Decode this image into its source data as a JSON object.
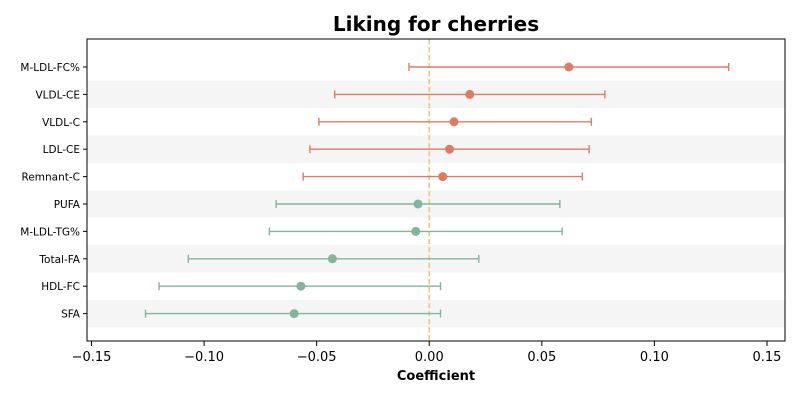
{
  "chart_data": {
    "type": "forest",
    "title": "Liking for cherries",
    "xlabel": "Coefficient",
    "xlim": [
      -0.152,
      0.158
    ],
    "xticks": [
      -0.15,
      -0.1,
      -0.05,
      0.0,
      0.05,
      0.1,
      0.15
    ],
    "xtick_labels": [
      "−0.15",
      "−0.10",
      "−0.05",
      "0.00",
      "0.05",
      "0.10",
      "0.15"
    ],
    "reference_line": 0.0,
    "colors": {
      "positive": "#e07b62",
      "negative": "#82b59b",
      "reference": "#f4c27a",
      "band": "#f5f5f5"
    },
    "rows": [
      {
        "label": "M-LDL-FC%",
        "estimate": 0.062,
        "lower": -0.009,
        "upper": 0.133
      },
      {
        "label": "VLDL-CE",
        "estimate": 0.018,
        "lower": -0.042,
        "upper": 0.078
      },
      {
        "label": "VLDL-C",
        "estimate": 0.011,
        "lower": -0.049,
        "upper": 0.072
      },
      {
        "label": "LDL-CE",
        "estimate": 0.009,
        "lower": -0.053,
        "upper": 0.071
      },
      {
        "label": "Remnant-C",
        "estimate": 0.006,
        "lower": -0.056,
        "upper": 0.068
      },
      {
        "label": "PUFA",
        "estimate": -0.005,
        "lower": -0.068,
        "upper": 0.058
      },
      {
        "label": "M-LDL-TG%",
        "estimate": -0.006,
        "lower": -0.071,
        "upper": 0.059
      },
      {
        "label": "Total-FA",
        "estimate": -0.043,
        "lower": -0.107,
        "upper": 0.022
      },
      {
        "label": "HDL-FC",
        "estimate": -0.057,
        "lower": -0.12,
        "upper": 0.005
      },
      {
        "label": "SFA",
        "estimate": -0.06,
        "lower": -0.126,
        "upper": 0.005
      }
    ]
  }
}
